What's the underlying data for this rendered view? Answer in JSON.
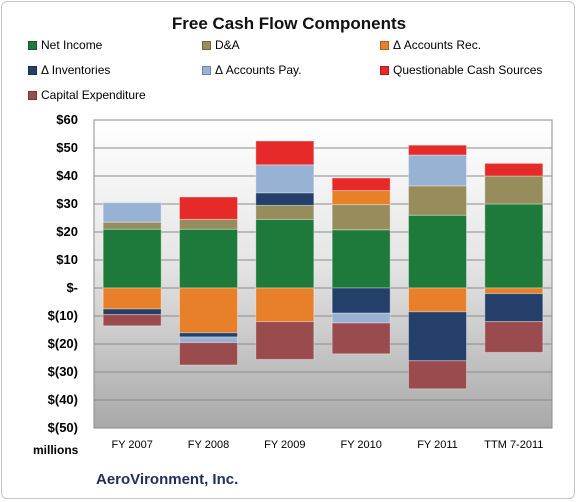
{
  "chart_data": {
    "type": "bar",
    "stacked": true,
    "title": "Free Cash Flow Components",
    "categories": [
      "FY 2007",
      "FY 2008",
      "FY 2009",
      "FY 2010",
      "FY 2011",
      "TTM 7-2011"
    ],
    "ylim": [
      -50,
      60
    ],
    "ytick_step": 10,
    "ytick_labels": [
      "$60",
      "$50",
      "$40",
      "$30",
      "$20",
      "$10",
      "$-",
      "$(10)",
      "$(20)",
      "$(30)",
      "$(40)",
      "$(50)"
    ],
    "units_label": "millions",
    "grid": true,
    "legend_position": "top",
    "series": [
      {
        "name": "Net Income",
        "color": "#1e7a3a",
        "values": [
          21,
          21,
          24.5,
          20.8,
          26,
          30
        ]
      },
      {
        "name": "D&A",
        "color": "#968c5c",
        "values": [
          2.5,
          3.5,
          5,
          9,
          10.5,
          10
        ]
      },
      {
        "name": "Δ Accounts Rec.",
        "color": "#e8802a",
        "values": [
          -7.5,
          -16,
          -12,
          5,
          -8.5,
          -2
        ]
      },
      {
        "name": "Δ Inventories",
        "color": "#24406a",
        "values": [
          -2,
          -1.5,
          4.5,
          -9,
          -17.5,
          -10
        ]
      },
      {
        "name": "Δ Accounts Pay.",
        "color": "#98b2d4",
        "values": [
          7,
          -2,
          10,
          -3.5,
          11,
          0
        ]
      },
      {
        "name": "Questionable Cash Sources",
        "color": "#e62a2a",
        "values": [
          0,
          8,
          8.5,
          4.5,
          3.5,
          4.5
        ]
      },
      {
        "name": "Capital Expenditure",
        "color": "#9a4b4e",
        "values": [
          -4,
          -8,
          -13.5,
          -11,
          -10,
          -11
        ]
      }
    ]
  },
  "footer": {
    "company": "AeroVironment, Inc."
  }
}
